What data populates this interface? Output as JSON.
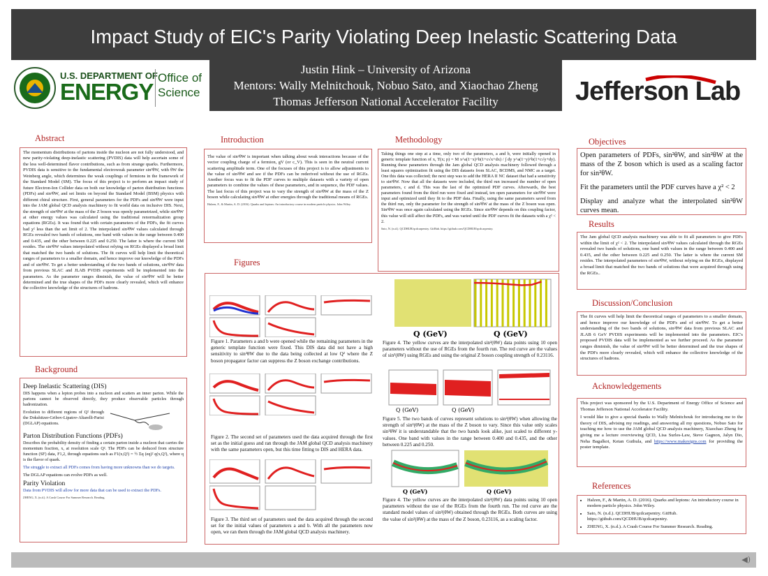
{
  "title": "Impact Study of EIC's Parity Violating Deep Inelastic Scattering Data",
  "authors": [
    "Justin Hink – University of Arizona",
    "Mentors: Wally Melnitchouk, Nobuo Sato, and Xiaochao Zheng",
    "Thomas Jefferson National Accelerator Facility"
  ],
  "logos": {
    "doe_top": "U.S. DEPARTMENT OF",
    "doe_main": "ENERGY",
    "doe_office": "Office of",
    "doe_science": "Science",
    "jlab": "Jefferson Lab"
  },
  "sections": {
    "abstract": "Abstract",
    "introduction": "Introduction",
    "methodology": "Methodology",
    "objectives": "Objectives",
    "figures": "Figures",
    "results": "Results",
    "background": "Background",
    "discussion": "Discussion/Conclusion",
    "acknowledgements": "Acknowledgements",
    "references": "References"
  },
  "abstract_text": "The momentum distributions of partons inside the nucleon are not fully understood, and new parity-violating deep-inelastic scattering (PVDIS) data will help ascertain some of the less well-determined flavor contributions, such as from strange quarks. Furthermore, PVDIS data is sensitive to the fundamental electroweak parameter sin²θW, with θW the Weinberg angle, which determines the weak couplings of fermions in the framework of the Standard Model (SM). The focus of this project is to perform an impact study of future Electron-Ion Collider data on both our knowledge of parton distribution functions (PDFs) and sin²θW, and set limits on beyond the Standard Model (BSM) physics with different chiral structure. First, general parameters for the PDFs and sin²θW were input into the JAM global QCD analysis machinery to fit world data on inclusive DIS. Next, the strength of sin²θW at the mass of the Z boson was openly parametrized, while sin²θW at other energy values was calculated using the traditional renormalization group equations (RGEs). It was found that with certain parameters of the PDFs, the fit curves had χ² less than the set limit of 2. The interpolated sin²θW values calculated through RGEs revealed two bands of solutions, one band with values in the range between 0.400 and 0.435, and the other between 0.225 and 0.250. The latter is where the current SM resides. The sin²θW values interpolated without relying on RGEs displayed a broad limit that matched the two bands of solutions. The fit curves will help limit the theoretical ranges of parameters to a smaller domain, and hence improve our knowledge of the PDFs and of sin²θW. To get a better understanding of the two bands of solutions, sin²θW data from previous SLAC and JLAB PVDIS experiments will be implemented into the parameters. As the parameter ranges diminish, the value of sin²θW will be better determined and the true shapes of the PDFs more clearly revealed, which will enhance the collective knowledge of the structures of hadrons.",
  "intro_text": "The value of sin²θW is important when talking about weak interactions because of the vector coupling charge of a fermion, gV (or c_V). This is seen in the neutral current scattering amplitude term. One of the focuses of this project is to allow adjustments to the value of sin²θW and see if the PDFs can be rederived without the use of RGEs. Another focus was to fit the PDF curves to multiple datasets with a variety of open parameters to combine the values of these parameters, and in sequence, the PDF values. The last focus of this project was to vary the strength of sin²θW at the mass of the Z boson while calculating sin²θW at other energies through the traditional means of RGEs.",
  "intro_ref": "Halzen, F., & Martin, A. D. (2016). Quarks and leptons: An introductory course in modern particle physics. John Wiley.",
  "method_text": "Taking things one step at a time, only two of the parameters, a and b, were initially opened in generic template function of x, T(x; p) = M x^a(1−x)^b(1+c√x+dx) / ∫ dy y^a(1−y)^b(1+c√y+dy). Running these parameters through the Jam global QCD analysis machinery followed through a least squares optimization fit using the DIS datasets from SLAC, BCDMS, and NMC as a target. One this data was collected; the next step was to add the HERA II NC dataset that had a sensitivity to sin²θW. Now that all the datasets were included, the third run increased the number of open parameters, c and d. This was the last of the optimized PDF curves. Afterwards, the best parameters found from the third run were fixed and instead, ten open parameters for sin²θW were input and optimized until they fit to the PDF data. Finally, using the same parameters saved from the third run, only the parameter for the strength of sin²θW at the mass of the Z boson was open. Sin²θW was once again calculated using the RGEs. Since sin²θW depends on this coupling factor, this value will still affect the PDFs, and was varied until the PDF curves fit the datasets with a χ² < 2.",
  "method_ref": "Sato, N. (n.d.). QCDHUB/qcdcarpentry. GitHub. https://github.com/QCDHUB/qcdcarpentry.",
  "objectives": [
    "Open parameters of PDFs, sin²θW, and sin²θW at the mass of the Z boson which is used as a scaling factor for sin²θW.",
    "Fit the parameters until the PDF curves have a χ² < 2",
    "Display and analyze what the interpolated sin²θW curves mean."
  ],
  "results_text": "The Jam global QCD analysis machinery was able to fit all parameters to give PDFs within the limit of χ² < 2. The interpolated sin²θW values calculated through the RGEs revealed two bands of solutions, one band with values in the range between 0.400 and 0.435, and the other between 0.225 and 0.250. The latter is where the current SM resides. The interpolated parameters of sin²θW, without relying on the RGEs, displayed a broad limit that matched the two bands of solutions that were acquired through using the RGEs..",
  "discussion_text": "The fit curves will help limit the theoretical ranges of parameters to a smaller domain, and hence improve our knowledge of the PDFs and of sin²θW. To get a better understanding of the two bands of solutions, sin²θW data from previous SLAC and JLAB 6 GeV PVDIS experiments will be implemented into the parameters. EIC's proposed PVDIS data will be implemented as we further proceed. As the parameter ranges diminish, the value of sin²θW will be better determined and the true shapes of the PDFs more clearly revealed, which will enhance the collective knowledge of the structures of hadrons.",
  "ack_text1": "This project was sponsored by the U.S. Department of Energy Office of Science and Thomas Jefferson National Accelerator Facility.",
  "ack_text2": "I would like to give a special thanks to Wally Melnitchouk for introducing me to the theory of DIS, advising my readings, and answering all my questions, Nobuo Sato for teaching me how to use the JAM global QCD analysis machinery, Xiaochao Zheng for giving me a lecture overviewing QCD, Lisa Surles-Law, Steve Gagnon, Jalyn Dio, Neha Bagalkot, Ketan Guthula, and",
  "ack_link": "https://www.makesigns.com",
  "ack_tail": " for providing the poster template.",
  "references": [
    "Halzen, F., & Martin, A. D. (2016). Quarks and leptons: An introductory course in modern particle physics. John Wiley.",
    "Sato, N. (n.d.). QCDHUB/qcdcarpentry. GitHub. https://github.com/QCDHUB/qcdcarpentry.",
    "ZHENG, X. (n.d.). A Crash Course For Summer Research. Reading."
  ],
  "background": {
    "dis_title": "Deep Inelastic Scattering (DIS)",
    "dis_text": "DIS happens when a lepton probes into a nucleon and scatters an inner parton. While the partons cannot be observed directly, they produce observable particles through hadronization.",
    "dglap_text": "Evolution to different regions of Q² through the Dokshitzer-Gribov-Lipatov-Altarelli-Parisi (DGLAP) equations.",
    "pdf_title": "Parton Distribution Functions (PDFs)",
    "pdf_text": "Describes the probability density of finding a certain parton inside a nucleon that carries the momentum fraction, x, at resolution scale Q². The PDFs can be deduced from structure function (SF) data, F1,2, through equations such as F1(x,Q²) = ½ Σq (eq)² q(x,Q²), where q is the flavor of quark.",
    "struggle": "The struggle to extract all PDFs comes from having more unknowns than we do targets.",
    "dglap_eq": "The DGLAP equations can evolve PDFs as well.",
    "pv_title": "Parity Violation",
    "pv_text": "Data from PVDIS will allow for more data that can be used to extract the PDFs.",
    "ref": "ZHENG, X. (n.d.). A Crash Course For Summer Research. Reading."
  },
  "captions": {
    "fig1": "Figure 1. Parameters a and b were opened while the remaining parameters in the generic template function were fixed. This DIS data did not have a high sensitivity to sin²θW due to the data being collected at low Q² where the Z boson propagator factor can suppress the Z boson exchange contributions.",
    "fig2": "Figure 2. The second set of parameters used the data acquired through the first set as the initial guess and ran through the JAM global QCD analysis machinery with the same parameters open, but this time fitting to DIS and HERA data.",
    "fig3": "Figure 3. The third set of parameters used the data acquired through the second set for the initial values of parameters a and b. With all the parameters now open, we ran them through the JAM global QCD analysis machinery.",
    "fig4a": "Figure 4. The yellow curves are the interpolated sin²(θW) data points using 10 open parameters without the use of RGEs from the fourth run. The red curve are the values of sin²(θW) using RGEs and using the original Z boson coupling strength of 0.23116.",
    "fig5": "Figure 5. The two bands of curves represent solutions to sin²(θW) when allowing the strength of sin²(θW) at the mass of the Z boson to vary. Since this value only scales sin²θW it is understandable that the two bands look alike, just scaled to different y-values. One band with values in the range between 0.400 and 0.435, and the other between 0.225 and 0.250.",
    "fig4b": "Figure 4. The yellow curves are the interpolated sin²(θW) data points using 10 open parameters without the use of the RGEs from the fourth run. The red curve are the standard model values of sin²(θW) obtained through the RGEs. Both curves are using the value of sin²(θW) at the mass of the Z boson, 0.23116, as a scaling factor."
  },
  "axes": {
    "q_gev": "Q (GeV)",
    "sin2": "sin²(θW)",
    "xuv": "xuv, xdv",
    "xdu": "x(d̄−ū)",
    "rs": "Rs",
    "xg": "xg",
    "dv_u": "dv/uv"
  },
  "chart_data": {
    "type": "line",
    "title": "",
    "xlabel": "Q (GeV)",
    "ylabel": "sin²(θW)",
    "xscale": "log",
    "xlim": [
      0.001,
      100000
    ],
    "ylim": [
      0.1,
      0.25
    ],
    "series": [
      {
        "name": "",
        "values": [
          0.2387,
          0.2384,
          0.2375,
          0.2355,
          0.2312,
          0.2325,
          0.242
        ]
      }
    ],
    "x": [
      0.001,
      0.01,
      0.1,
      1,
      91.19,
      1000,
      10000
    ]
  },
  "colors": {
    "header": "#3d3d3d",
    "section": "#b22222",
    "border": "#cc6666",
    "blue": "#2244aa",
    "red": "#e02020",
    "yellow": "#c8c800"
  }
}
